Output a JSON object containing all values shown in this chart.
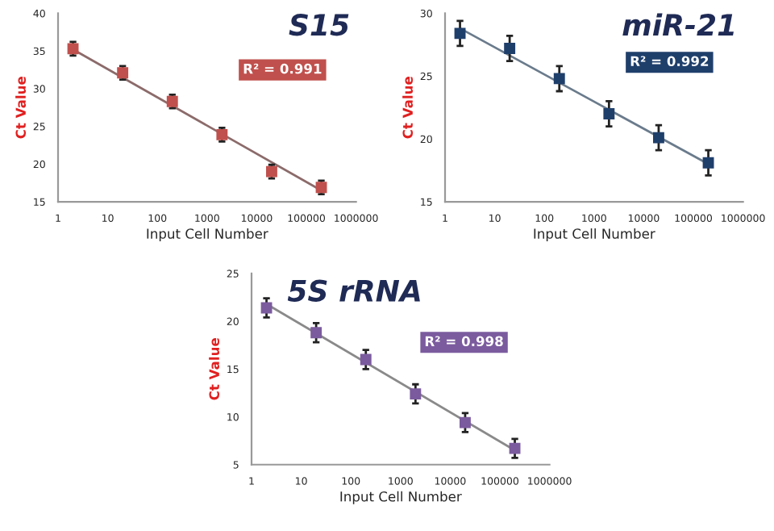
{
  "chart_data": [
    {
      "type": "scatter",
      "title": "S15",
      "xlabel": "Input Cell Number",
      "ylabel": "Ct Value",
      "log": "x",
      "grid": false,
      "legend": false,
      "xlim": [
        1,
        1000000
      ],
      "xticks": [
        1,
        10,
        100,
        1000,
        10000,
        100000,
        1000000
      ],
      "ylim": [
        15,
        40
      ],
      "yticks": [
        15,
        20,
        25,
        30,
        35,
        40
      ],
      "annotations": [
        "R² = 0.991"
      ],
      "series": [
        {
          "marker": "square",
          "color": "#c0504d",
          "x": [
            2,
            20,
            200,
            2000,
            20000,
            200000
          ],
          "values": [
            35.3,
            32.1,
            28.3,
            23.9,
            19.0,
            16.9
          ],
          "errors": [
            0.9,
            0.9,
            0.9,
            0.9,
            0.9,
            0.9
          ]
        },
        {
          "type": "line",
          "marker": "none",
          "color": "#8c6b6b",
          "x": [
            2,
            200000
          ],
          "values": [
            35.2,
            16.5
          ]
        }
      ]
    },
    {
      "type": "scatter",
      "title": "miR-21",
      "xlabel": "Input Cell Number",
      "ylabel": "Ct Value",
      "log": "x",
      "grid": false,
      "legend": false,
      "xlim": [
        1,
        1000000
      ],
      "xticks": [
        1,
        10,
        100,
        1000,
        10000,
        100000,
        1000000
      ],
      "ylim": [
        15,
        30
      ],
      "yticks": [
        15,
        20,
        25,
        30
      ],
      "annotations": [
        "R² = 0.992"
      ],
      "series": [
        {
          "marker": "square",
          "color": "#1f3f6b",
          "x": [
            2,
            20,
            200,
            2000,
            20000,
            200000
          ],
          "values": [
            28.4,
            27.2,
            24.8,
            22.0,
            20.1,
            18.1
          ],
          "errors": [
            1.0,
            1.0,
            1.0,
            1.0,
            1.0,
            1.0
          ]
        },
        {
          "type": "line",
          "marker": "none",
          "color": "#6a7b8c",
          "x": [
            2,
            200000
          ],
          "values": [
            28.8,
            18.0
          ]
        }
      ]
    },
    {
      "type": "scatter",
      "title": "5S rRNA",
      "xlabel": "Input Cell Number",
      "ylabel": "Ct Value",
      "log": "x",
      "grid": false,
      "legend": false,
      "xlim": [
        1,
        1000000
      ],
      "xticks": [
        1,
        10,
        100,
        1000,
        10000,
        100000,
        1000000
      ],
      "ylim": [
        5,
        25
      ],
      "yticks": [
        5,
        10,
        15,
        20,
        25
      ],
      "annotations": [
        "R² = 0.998"
      ],
      "series": [
        {
          "marker": "square",
          "color": "#7b5b9e",
          "x": [
            2,
            20,
            200,
            2000,
            20000,
            200000
          ],
          "values": [
            21.4,
            18.8,
            16.0,
            12.4,
            9.4,
            6.7
          ],
          "errors": [
            1.0,
            1.0,
            1.0,
            1.0,
            1.0,
            1.0
          ]
        },
        {
          "type": "line",
          "marker": "none",
          "color": "#8a8a8a",
          "x": [
            2,
            200000
          ],
          "values": [
            21.8,
            6.5
          ]
        }
      ]
    }
  ]
}
